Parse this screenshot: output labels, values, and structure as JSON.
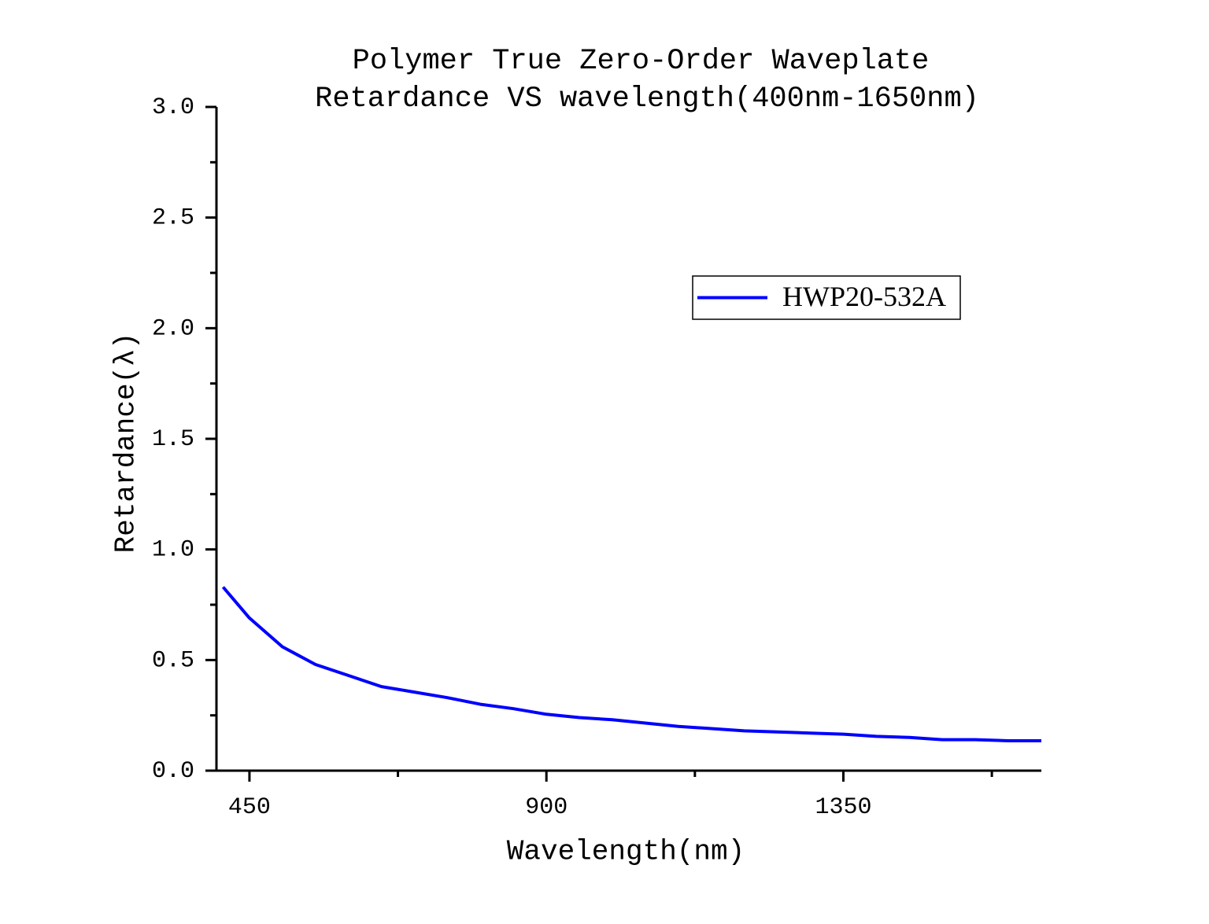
{
  "chart_data": {
    "type": "line",
    "title": "Polymer True Zero-Order Waveplate",
    "subtitle": "Retardance VS wavelength(400nm-1650nm)",
    "x_label": "Wavelength(nm)",
    "y_label": "Retardance(λ)",
    "x": [
      410,
      450,
      500,
      550,
      600,
      650,
      700,
      750,
      800,
      850,
      900,
      950,
      1000,
      1050,
      1100,
      1150,
      1200,
      1250,
      1300,
      1350,
      1400,
      1450,
      1500,
      1550,
      1600,
      1650
    ],
    "series": [
      {
        "name": "HWP20-532A",
        "color": "#0000ff",
        "values": [
          0.83,
          0.69,
          0.56,
          0.48,
          0.43,
          0.38,
          0.355,
          0.33,
          0.3,
          0.28,
          0.255,
          0.24,
          0.23,
          0.215,
          0.2,
          0.19,
          0.18,
          0.175,
          0.17,
          0.165,
          0.155,
          0.15,
          0.14,
          0.14,
          0.135,
          0.135
        ]
      }
    ],
    "xlim": [
      400,
      1650
    ],
    "xticks": [
      450,
      900,
      1350
    ],
    "xminorticks": [
      675,
      1125,
      1575
    ],
    "ylim": [
      0,
      3
    ],
    "yticks": [
      {
        "value": 0,
        "label": "0.0"
      },
      {
        "value": 0.5,
        "label": "0.5"
      },
      {
        "value": 1,
        "label": "1.0"
      },
      {
        "value": 1.5,
        "label": "1.5"
      },
      {
        "value": 2,
        "label": "2.0"
      },
      {
        "value": 2.5,
        "label": "2.5"
      },
      {
        "value": 3,
        "label": "3.0"
      }
    ],
    "yminorticks": [
      0.25,
      0.75,
      1.25,
      1.75,
      2.25,
      2.75
    ],
    "grid": false,
    "legend": "upper-right"
  }
}
